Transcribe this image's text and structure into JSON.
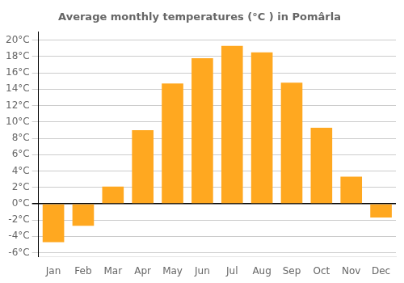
{
  "chart_data": {
    "type": "bar",
    "title": "Average monthly temperatures (°C ) in Pomârla",
    "categories": [
      "Jan",
      "Feb",
      "Mar",
      "Apr",
      "May",
      "Jun",
      "Jul",
      "Aug",
      "Sep",
      "Oct",
      "Nov",
      "Dec"
    ],
    "values": [
      -4.7,
      -2.7,
      2.1,
      9.0,
      14.7,
      17.8,
      19.3,
      18.5,
      14.8,
      9.3,
      3.3,
      -1.7
    ],
    "color": "#FFA820",
    "ylim": [
      -6.5,
      21
    ],
    "yticks": [
      {
        "value": -6,
        "label": "-6°C"
      },
      {
        "value": -4,
        "label": "-4°C"
      },
      {
        "value": -2,
        "label": "-2°C"
      },
      {
        "value": 0,
        "label": "0°C"
      },
      {
        "value": 2,
        "label": "2°C"
      },
      {
        "value": 4,
        "label": "4°C"
      },
      {
        "value": 6,
        "label": "6°C"
      },
      {
        "value": 8,
        "label": "8°C"
      },
      {
        "value": 10,
        "label": "10°C"
      },
      {
        "value": 12,
        "label": "12°C"
      },
      {
        "value": 14,
        "label": "14°C"
      },
      {
        "value": 16,
        "label": "16°C"
      },
      {
        "value": 18,
        "label": "18°C"
      },
      {
        "value": 20,
        "label": "20°C"
      }
    ],
    "grid": true
  }
}
